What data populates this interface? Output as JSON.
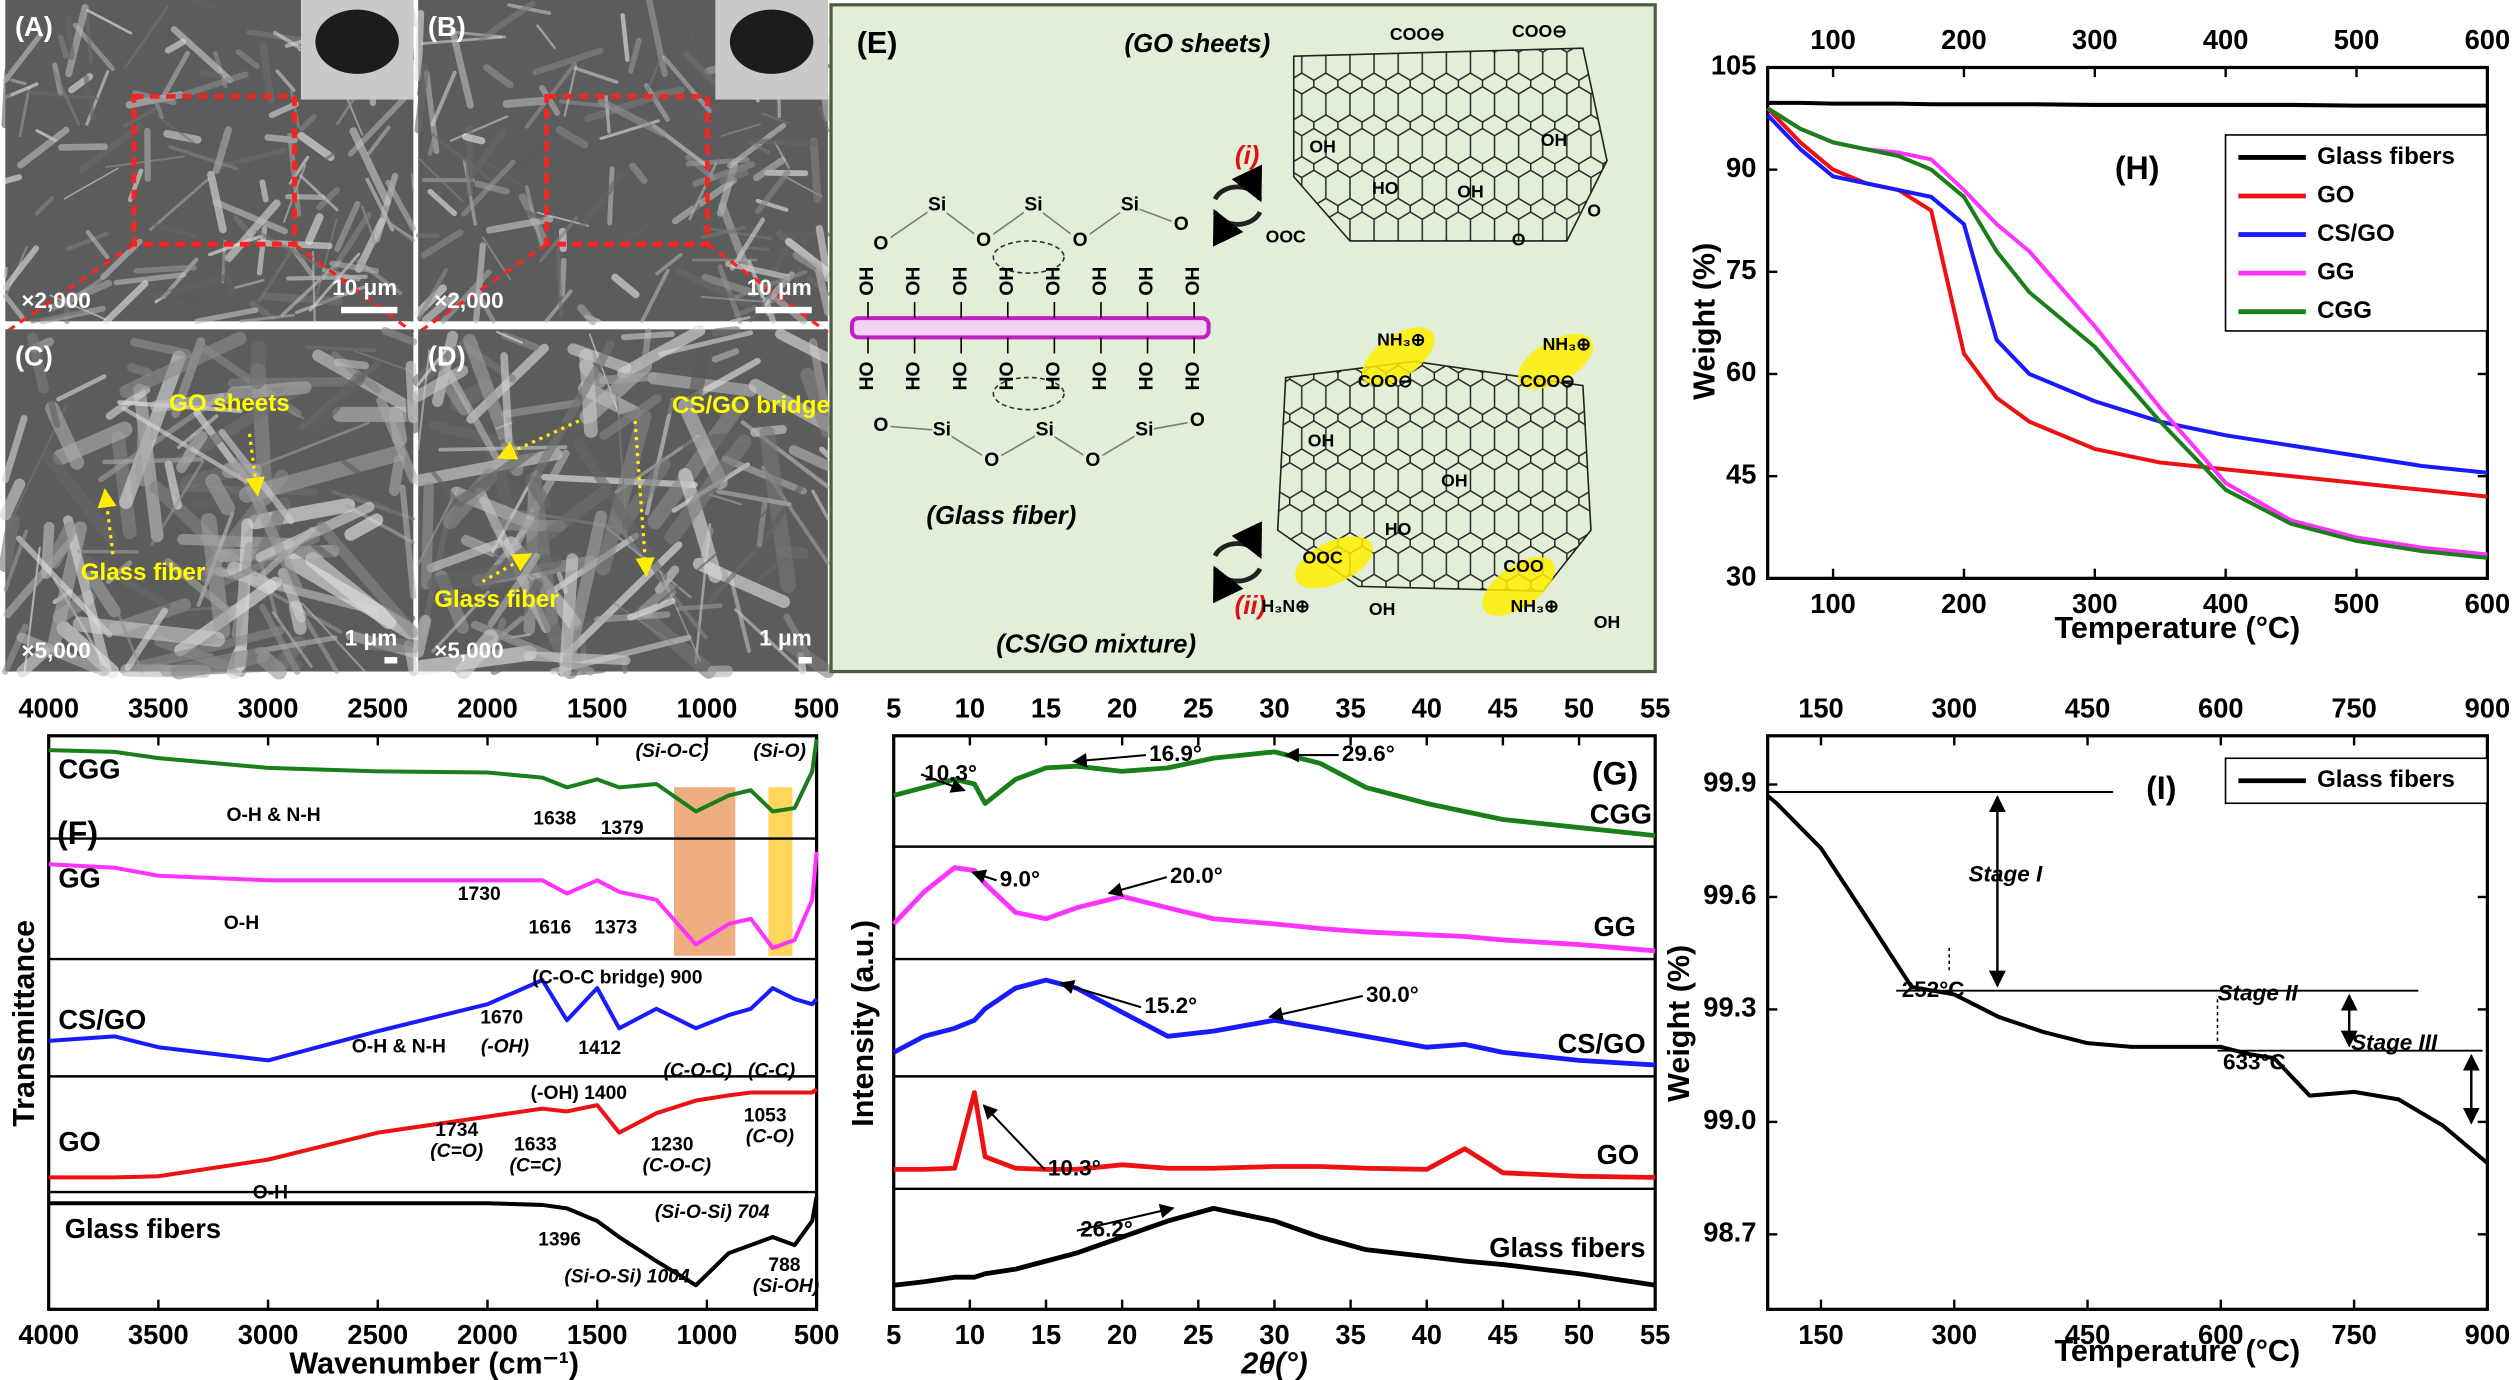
{
  "sem": [
    {
      "label": "(A)",
      "magnification": "×2,000",
      "scale": "10 μm"
    },
    {
      "label": "(B)",
      "magnification": "×2,000",
      "scale": "10 μm"
    },
    {
      "label": "(C)",
      "magnification": "×5,000",
      "scale": "1 μm",
      "annotations": [
        "GO sheets",
        "Glass fiber"
      ]
    },
    {
      "label": "(D)",
      "magnification": "×5,000",
      "scale": "1 μm",
      "annotations": [
        "CS/GO bridge",
        "Glass fiber"
      ]
    }
  ],
  "scheme": {
    "label": "(E)",
    "go_title": "(GO sheets)",
    "step_i": "(i)",
    "step_ii": "(ii)",
    "fiber_title": "(Glass fiber)",
    "mixture_title": "(CS/GO mixture)",
    "rod_top": [
      "OH",
      "OH",
      "OH",
      "OH",
      "OH",
      "OH",
      "OH",
      "OH"
    ],
    "rod_bottom": [
      "HO",
      "HO",
      "HO",
      "HO",
      "HO",
      "HO",
      "HO",
      "HO"
    ],
    "chain_top": [
      "O",
      "Si",
      "O",
      "Si",
      "O",
      "Si",
      "O"
    ],
    "chain_bottom": [
      "O",
      "Si",
      "O",
      "Si",
      "O",
      "Si",
      "O"
    ],
    "go_labels": [
      "COO⊖",
      "COO⊖",
      "OH",
      "OH",
      "HO",
      "OH",
      "O",
      "OOC",
      "O"
    ],
    "csgo_labels": [
      "NH₃⊕",
      "COO⊖",
      "NH₃⊕",
      "COO⊖",
      "OH",
      "OH",
      "HO",
      "OOC",
      "COO",
      "H₃N⊕",
      "OH",
      "NH₃⊕",
      "OH"
    ]
  },
  "chart_data": [
    {
      "type": "line",
      "panel": "(H)",
      "x_label": "Temperature (°C)",
      "y_label": "Weight (%)",
      "x": [
        50,
        75,
        100,
        125,
        150,
        175,
        200,
        225,
        250,
        300,
        350,
        400,
        450,
        500,
        550,
        600
      ],
      "xlim": [
        50,
        600
      ],
      "xticks": [
        100,
        200,
        300,
        400,
        500,
        600
      ],
      "top_tick_labels": true,
      "ylim": [
        30,
        105
      ],
      "yticks": [
        30,
        45,
        60,
        75,
        90,
        105
      ],
      "legend": "upper right",
      "series": [
        {
          "name": "Glass fibers",
          "color": "#000000",
          "values": [
            99.8,
            99.8,
            99.7,
            99.7,
            99.7,
            99.6,
            99.6,
            99.6,
            99.6,
            99.5,
            99.5,
            99.5,
            99.5,
            99.4,
            99.4,
            99.4
          ]
        },
        {
          "name": "GO",
          "color": "#ee1111",
          "values": [
            99,
            94,
            90,
            88,
            87,
            84,
            63,
            56.5,
            53,
            49,
            47,
            46,
            45,
            44,
            43,
            42
          ]
        },
        {
          "name": "CS/GO",
          "color": "#1a1aff",
          "values": [
            98,
            93,
            89,
            88,
            87,
            86,
            82,
            65,
            60,
            56,
            53,
            51,
            49.5,
            48,
            46.5,
            45.5
          ]
        },
        {
          "name": "GG",
          "color": "#ff33ff",
          "values": [
            99,
            96,
            94,
            93,
            92.5,
            91.5,
            87,
            82,
            78,
            67,
            55,
            44,
            38.5,
            36,
            34.5,
            33.5
          ]
        },
        {
          "name": "CGG",
          "color": "#1a7f1a",
          "values": [
            99,
            96,
            94,
            93,
            92,
            90,
            86,
            78,
            72,
            64,
            53,
            43,
            38,
            35.5,
            34,
            33
          ]
        }
      ]
    },
    {
      "type": "line",
      "panel": "(I)",
      "x_label": "Temperature (°C)",
      "y_label": "Weight (%)",
      "x": [
        90,
        100,
        150,
        200,
        252,
        300,
        350,
        400,
        450,
        500,
        550,
        600,
        633,
        660,
        700,
        750,
        800,
        850,
        900
      ],
      "xlim": [
        90,
        900
      ],
      "xticks": [
        150,
        300,
        450,
        600,
        750,
        900
      ],
      "top_tick_labels": true,
      "ylim": [
        98.5,
        100.03
      ],
      "yticks": [
        98.7,
        {
          "value": 99,
          "label": "99.0"
        },
        99.3,
        99.6,
        99.9
      ],
      "legend": "upper right",
      "levels": [
        99.88,
        99.35,
        99.19
      ],
      "annotations": [
        "Stage I",
        "Stage II",
        "Stage III",
        "252°C",
        "633°C"
      ],
      "series": [
        {
          "name": "Glass fibers",
          "color": "#000000",
          "values": [
            99.87,
            99.85,
            99.73,
            99.55,
            99.36,
            99.34,
            99.28,
            99.24,
            99.21,
            99.2,
            99.2,
            99.2,
            99.18,
            99.17,
            99.07,
            99.08,
            99.06,
            98.99,
            98.89
          ]
        }
      ]
    },
    {
      "type": "line",
      "panel": "(F)",
      "x_label": "Wavenumber (cm⁻¹)",
      "y_label": "Transmittance",
      "x": [
        4000,
        3700,
        3500,
        3000,
        2500,
        2000,
        1750,
        1638,
        1500,
        1400,
        1230,
        1050,
        900,
        800,
        700,
        600,
        520,
        500
      ],
      "xlim": [
        4000,
        500
      ],
      "xticks": [
        4000,
        3500,
        3000,
        2500,
        2000,
        1500,
        1000,
        500
      ],
      "top_tick_labels": true,
      "ylim": [
        0,
        100
      ],
      "series_labels": "left",
      "bands": [
        {
          "from": 1150,
          "to": 870,
          "color": "#eb9a63"
        },
        {
          "from": 720,
          "to": 610,
          "color": "#ffcc33"
        }
      ],
      "annotations": [
        "O-H & N-H",
        "1638",
        "1379",
        "(Si-O-C)",
        "(Si-O)",
        "O-H",
        "1730",
        "1616",
        "1373",
        "(C-O-C bridge) 900",
        "1670",
        "(-OH)",
        "1412",
        "(C-O-C)",
        "(C-C)",
        "O-H & N-H",
        "(-OH) 1400",
        "1734",
        "(C=O)",
        "1633",
        "(C=C)",
        "1230",
        "(C-O-C)",
        "1053",
        "(C-O)",
        "O-H",
        "1396",
        "(Si-O-Si) 704",
        "788",
        "(Si-OH)",
        "(Si-O-Si) 1004"
      ],
      "series": [
        {
          "name": "CGG",
          "color": "#1a7f1a",
          "values": [
            97.5,
            97.2,
            96.1,
            94.4,
            93.8,
            93.6,
            92.7,
            91.0,
            92.4,
            91.0,
            91.6,
            86.8,
            89.6,
            90.5,
            86.8,
            87.4,
            93.8,
            99.4
          ]
        },
        {
          "name": "GG",
          "color": "#ff33ff",
          "values": [
            77.6,
            77.0,
            75.6,
            74.8,
            74.8,
            74.8,
            74.8,
            72.5,
            74.8,
            72.8,
            71.4,
            63.6,
            67.2,
            68.1,
            63.0,
            64.4,
            71.4,
            79.8
          ]
        },
        {
          "name": "CS/GO",
          "color": "#1a1aff",
          "values": [
            46.8,
            47.6,
            45.7,
            43.4,
            48.5,
            53.2,
            57.4,
            50.4,
            56.0,
            49.0,
            52.4,
            49.0,
            51.3,
            52.4,
            56.0,
            54.1,
            53.2,
            54.1
          ]
        },
        {
          "name": "GO",
          "color": "#ee1111",
          "values": [
            23.0,
            23.0,
            23.2,
            26.1,
            30.8,
            33.6,
            35.0,
            34.5,
            35.6,
            30.8,
            34.2,
            36.4,
            37.3,
            37.8,
            37.8,
            37.8,
            37.8,
            38.4
          ]
        },
        {
          "name": "Glass fibers",
          "color": "#000000",
          "values": [
            18.5,
            18.5,
            18.5,
            18.5,
            18.5,
            18.5,
            18.2,
            17.6,
            15.4,
            12.6,
            8.4,
            4.2,
            9.8,
            11.2,
            12.6,
            11.2,
            15.4,
            19.6
          ]
        }
      ]
    },
    {
      "type": "line",
      "panel": "(G)",
      "x_label": "2θ(°)",
      "y_label": "Intensity (a.u.)",
      "x": [
        5,
        7,
        9,
        10.3,
        11,
        13,
        15,
        17,
        20,
        23,
        26,
        30,
        33,
        36,
        40,
        42.5,
        45,
        50,
        55
      ],
      "xlim": [
        5,
        55
      ],
      "xticks": [
        5,
        10,
        15,
        20,
        25,
        30,
        35,
        40,
        45,
        50,
        55
      ],
      "top_tick_labels": true,
      "ylim": [
        0,
        100
      ],
      "series_labels": "right",
      "annotations": [
        "10.3°",
        "16.9°",
        "29.6°",
        "9.0°",
        "20.0°",
        "15.2°",
        "30.0°",
        "10.3°",
        "26.2°"
      ],
      "series": [
        {
          "name": "CGG",
          "color": "#1a7f1a",
          "values": [
            89.6,
            91.0,
            92.4,
            91.6,
            88.2,
            92.4,
            94.4,
            94.7,
            93.8,
            94.4,
            96.1,
            97.2,
            95.2,
            91.0,
            88.2,
            86.8,
            85.4,
            84.0,
            82.6
          ]
        },
        {
          "name": "GG",
          "color": "#ff33ff",
          "values": [
            67.2,
            72.8,
            77.0,
            76.5,
            74.2,
            69.2,
            68.1,
            70.0,
            72.0,
            70.0,
            68.1,
            67.2,
            66.4,
            65.8,
            65.3,
            65.0,
            64.4,
            63.6,
            62.5
          ]
        },
        {
          "name": "CS/GO",
          "color": "#1a1aff",
          "values": [
            44.8,
            47.6,
            49.0,
            50.4,
            52.4,
            56.0,
            57.4,
            56.0,
            51.8,
            47.6,
            48.5,
            50.4,
            49.0,
            47.6,
            45.7,
            46.2,
            44.8,
            43.4,
            42.6
          ]
        },
        {
          "name": "GO",
          "color": "#ee1111",
          "values": [
            24.4,
            24.4,
            24.6,
            37.8,
            26.6,
            24.6,
            24.4,
            24.4,
            25.2,
            24.6,
            24.6,
            24.9,
            24.9,
            24.6,
            24.4,
            28.0,
            23.8,
            23.2,
            23.0
          ]
        },
        {
          "name": "Glass fibers",
          "color": "#000000",
          "values": [
            4.2,
            4.8,
            5.6,
            5.6,
            6.2,
            7.0,
            8.4,
            9.8,
            12.6,
            15.4,
            17.6,
            15.4,
            12.6,
            10.4,
            9.2,
            8.4,
            7.8,
            6.2,
            4.2
          ]
        }
      ]
    }
  ]
}
